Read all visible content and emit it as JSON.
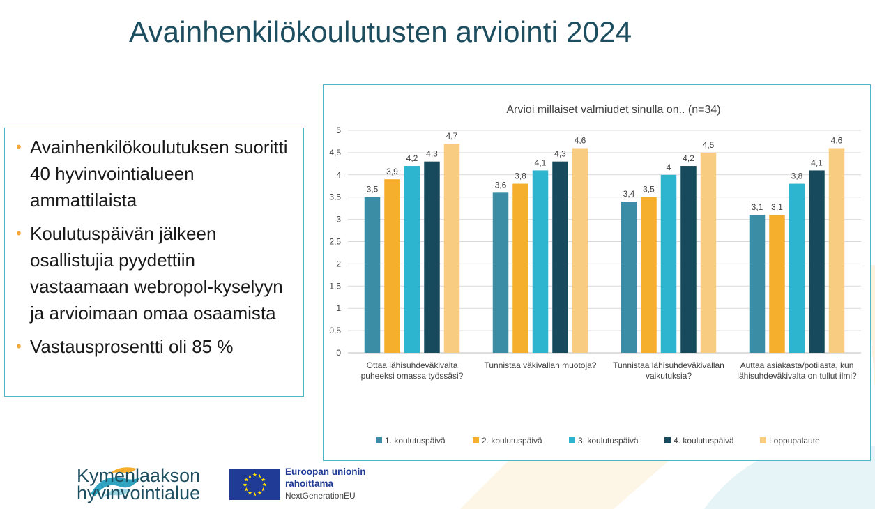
{
  "slide": {
    "title": "Avainhenkilökoulutusten arviointi 2024",
    "bullets": [
      "Avainhenkilökoulutuksen suoritti 40 hyvinvointialueen ammattilaista",
      "Koulutuspäivän jälkeen osallistujia pyydettiin vastaamaan webropol-kyselyyn ja arvioimaan omaa osaamista",
      "Vastausprosentti oli 85 %"
    ]
  },
  "footer": {
    "org_name_line1": "Kymenlaakson",
    "org_name_line2": "hyvinvointialue",
    "eu_line1": "Euroopan unionin",
    "eu_line2": "rahoittama",
    "eu_sub": "NextGenerationEU"
  },
  "colors": {
    "title": "#1d4e60",
    "accent": "#4fb6c6",
    "bullet": "#f2a93b"
  },
  "chart_data": {
    "type": "bar",
    "title": "Arvioi millaiset valmiudet sinulla on.. (n=34)",
    "categories": [
      [
        "Ottaa lähisuhdeväkivalta",
        "puheeksi omassa työssäsi?"
      ],
      [
        "Tunnistaa väkivallan muotoja?"
      ],
      [
        "Tunnistaa lähisuhdeväkivallan",
        "vaikutuksia?"
      ],
      [
        "Auttaa asiakasta/potilasta, kun",
        "lähisuhdeväkivalta on tullut ilmi?"
      ]
    ],
    "series": [
      {
        "name": "1. koulutuspäivä",
        "color": "#3a8da4",
        "values": [
          3.5,
          3.6,
          3.4,
          3.1
        ]
      },
      {
        "name": "2. koulutuspäivä",
        "color": "#f6ae2d",
        "values": [
          3.9,
          3.8,
          3.5,
          3.1
        ]
      },
      {
        "name": "3. koulutuspäivä",
        "color": "#2db5cf",
        "values": [
          4.2,
          4.1,
          4.0,
          3.8
        ]
      },
      {
        "name": "4. koulutuspäivä",
        "color": "#174a5c",
        "values": [
          4.3,
          4.3,
          4.2,
          4.1
        ]
      },
      {
        "name": "Loppupalaute",
        "color": "#f8cd82",
        "values": [
          4.7,
          4.6,
          4.5,
          4.6
        ]
      }
    ],
    "yticks": [
      "0",
      "0,5",
      "1",
      "1,5",
      "2",
      "2,5",
      "3",
      "3,5",
      "4",
      "4,5",
      "5"
    ],
    "ylim": [
      0,
      5
    ],
    "grid": true,
    "legend": "bottom"
  }
}
